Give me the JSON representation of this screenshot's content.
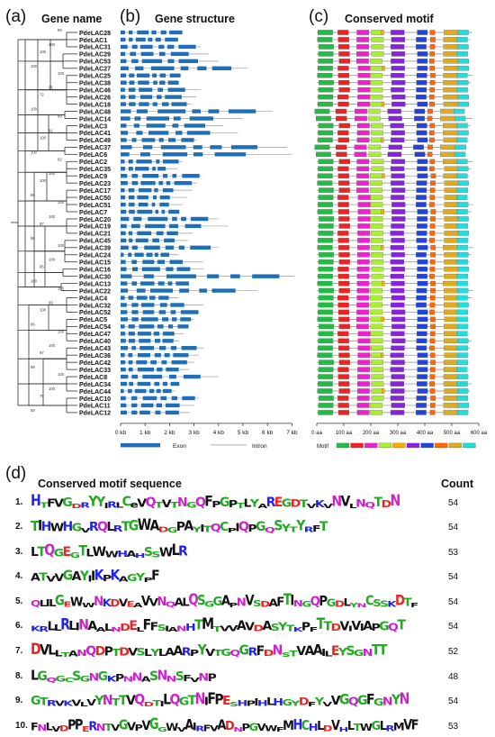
{
  "panels": {
    "a": {
      "letter": "(a)",
      "title": "Gene name"
    },
    "b": {
      "letter": "(b)",
      "title": "Gene structure"
    },
    "c": {
      "letter": "(c)",
      "title": "Conserved motif"
    },
    "d": {
      "letter": "(d)",
      "title": "Conserved motif sequence",
      "count_header": "Count"
    }
  },
  "genes": [
    "PdeLAC28",
    "PdeLAC1",
    "PdeLAC31",
    "PdeLAC29",
    "PdeLAC53",
    "PdeLAC27",
    "PdeLAC25",
    "PdeLAC38",
    "PdeLAC46",
    "PdeLAC26",
    "PdeLAC18",
    "PdeLAC48",
    "PdeLAC14",
    "PdeLAC3",
    "PdeLAC41",
    "PdeLAC49",
    "PdeLAC37",
    "PdeLAC6",
    "PdeLAC2",
    "PdeLAC35",
    "PdeLAC9",
    "PdeLAC23",
    "PdeLAC17",
    "PdeLAC50",
    "PdeLAC51",
    "PdeLAC7",
    "PdeLAC20",
    "PdeLAC19",
    "PdeLAC21",
    "PdeLAC45",
    "PdeLAC39",
    "PdeLAC24",
    "PdeLAC15",
    "PdeLAC16",
    "PdeLAC30",
    "PdeLAC13",
    "PdeLAC22",
    "PdeLAC4",
    "PdeLAC32",
    "PdeLAC52",
    "PdeLAC5",
    "PdeLAC54",
    "PdeLAC47",
    "PdeLAC40",
    "PdeLAC43",
    "PdeLAC36",
    "PdeLAC42",
    "PdeLAC33",
    "PdeLAC8",
    "PdeLAC34",
    "PdeLAC44",
    "PdeLAC10",
    "PdeLAC11",
    "PdeLAC12"
  ],
  "bootstrap": [
    "99",
    "100",
    "100",
    "100",
    "100",
    "95",
    "72",
    "100",
    "99",
    "91",
    "100",
    "100",
    "92",
    "100",
    "100",
    "98",
    "100",
    "100",
    "97",
    "96",
    "100",
    "100",
    "95",
    "100",
    "100",
    "99",
    "100",
    "86",
    "100",
    "100",
    "97",
    "99",
    "100",
    "100",
    "79",
    "89"
  ],
  "gene_structure": {
    "axis_ticks": [
      "0 kb",
      "1 kb",
      "2 kb",
      "3 kb",
      "4 kb",
      "5 kb",
      "6 kb",
      "7 kb"
    ],
    "legend": {
      "exon": "Exon",
      "intron": "Intron"
    },
    "exon_color": "#1f6fb8"
  },
  "motif_panel": {
    "axis_ticks": [
      "0 aa",
      "100 aa",
      "200 aa",
      "300 aa",
      "400 aa",
      "500 aa",
      "600 aa"
    ],
    "legend_title": "Motif",
    "legend_numbers": [
      "1",
      "2",
      "3",
      "4",
      "5",
      "6",
      "7",
      "8",
      "9",
      "10"
    ],
    "colors": [
      "#22bb44",
      "#ee2222",
      "#ee22cc",
      "#aaee33",
      "#ffaa00",
      "#8822dd",
      "#2244dd",
      "#ff6600",
      "#ddaa22",
      "#22dddd"
    ]
  },
  "motifs": [
    {
      "num": "1.",
      "sequence": "HTFVGDRYYIRLCeVQTVTNGQFPGPTLYAREGDTVKVNVLNQTDN",
      "count": "54"
    },
    {
      "num": "2.",
      "sequence": "TIHWHGVRQLRTGWADGPAYITQCPIQPGQSYTYRFT",
      "count": "54"
    },
    {
      "num": "3.",
      "sequence": "LTQGEGTLWWHAHSSWLR",
      "count": "53"
    },
    {
      "num": "4.",
      "sequence": "ATVVGAYIIKPKAGYPF",
      "count": "54"
    },
    {
      "num": "5.",
      "sequence": "QLILGEWWNKDVEAVVNQALQSGGAPNVSDAFTINGQPGDLYNCSSKDTF",
      "count": "54"
    },
    {
      "num": "6.",
      "sequence": "KRLLRLINAALNDELFFSIANHTMTVVAVDASYTKPFTTDVIVIAPGQT",
      "count": "54"
    },
    {
      "num": "7.",
      "sequence": "DVLLTANQDPTDVSLYLAARPYVTGQGRFDNSTVAAILEYSGNTT",
      "count": "52"
    },
    {
      "num": "8.",
      "sequence": "LGQGCSGNGKPNNASNNSFVNP",
      "count": "48"
    },
    {
      "num": "9.",
      "sequence": "GTRVKVLVYNTTVQDTILQGTNIFPESHPIHLHGYDFYVVGQGFGNYN",
      "count": "54"
    },
    {
      "num": "10.",
      "sequence": "FNLVDPPERNTVGVPVGGWVAIRFVADNPGVWFMHCHLDVHLTWGLRMVF",
      "count": "53"
    }
  ]
}
